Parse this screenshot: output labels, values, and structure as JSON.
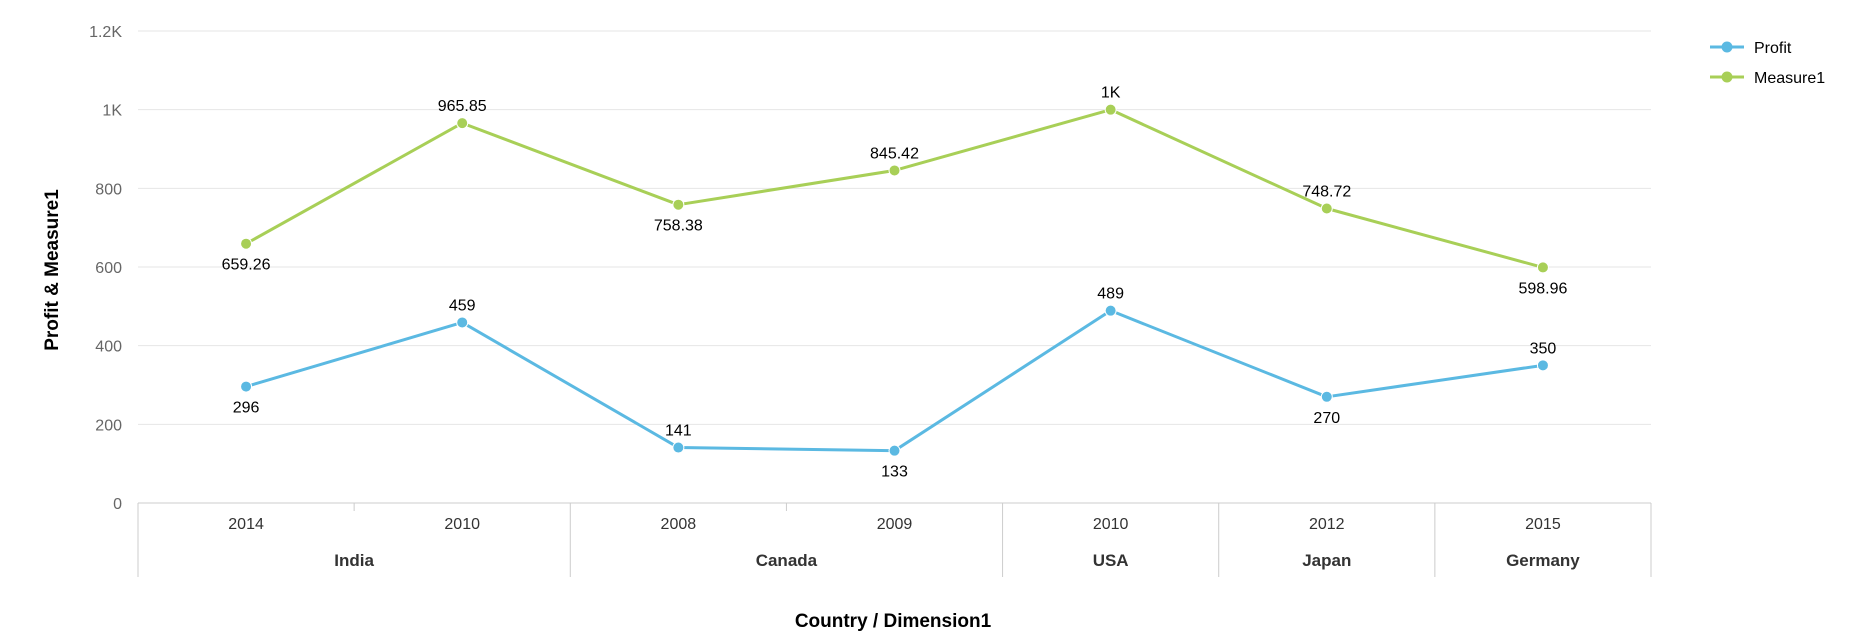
{
  "chart_data": {
    "type": "line",
    "xlabel": "Country / Dimension1",
    "ylabel": "Profit & Measure1",
    "ylim": [
      0,
      1200
    ],
    "y_ticks": [
      0,
      200,
      400,
      600,
      800,
      1000,
      1200
    ],
    "y_tick_labels": [
      "0",
      "200",
      "400",
      "600",
      "800",
      "1K",
      "1.2K"
    ],
    "grid": true,
    "legend_position": "top-right",
    "categories": [
      "2014",
      "2010",
      "2008",
      "2009",
      "2010",
      "2012",
      "2015"
    ],
    "groups": [
      {
        "name": "India",
        "categories": [
          "2014",
          "2010"
        ]
      },
      {
        "name": "Canada",
        "categories": [
          "2008",
          "2009"
        ]
      },
      {
        "name": "USA",
        "categories": [
          "2010"
        ]
      },
      {
        "name": "Japan",
        "categories": [
          "2012"
        ]
      },
      {
        "name": "Germany",
        "categories": [
          "2015"
        ]
      }
    ],
    "series": [
      {
        "name": "Profit",
        "color": "#5bb9e2",
        "values": [
          296,
          459,
          141,
          133,
          489,
          270,
          350
        ],
        "labels": [
          "296",
          "459",
          "141",
          "133",
          "489",
          "270",
          "350"
        ],
        "label_pos": [
          "below",
          "above",
          "above",
          "below",
          "above",
          "below",
          "above"
        ]
      },
      {
        "name": "Measure1",
        "color": "#a8cf57",
        "values": [
          659.26,
          965.85,
          758.38,
          845.42,
          1000,
          748.72,
          598.96
        ],
        "labels": [
          "659.26",
          "965.85",
          "758.38",
          "845.42",
          "1K",
          "748.72",
          "598.96"
        ],
        "label_pos": [
          "below",
          "above",
          "below",
          "above",
          "above",
          "above",
          "below"
        ]
      }
    ]
  }
}
